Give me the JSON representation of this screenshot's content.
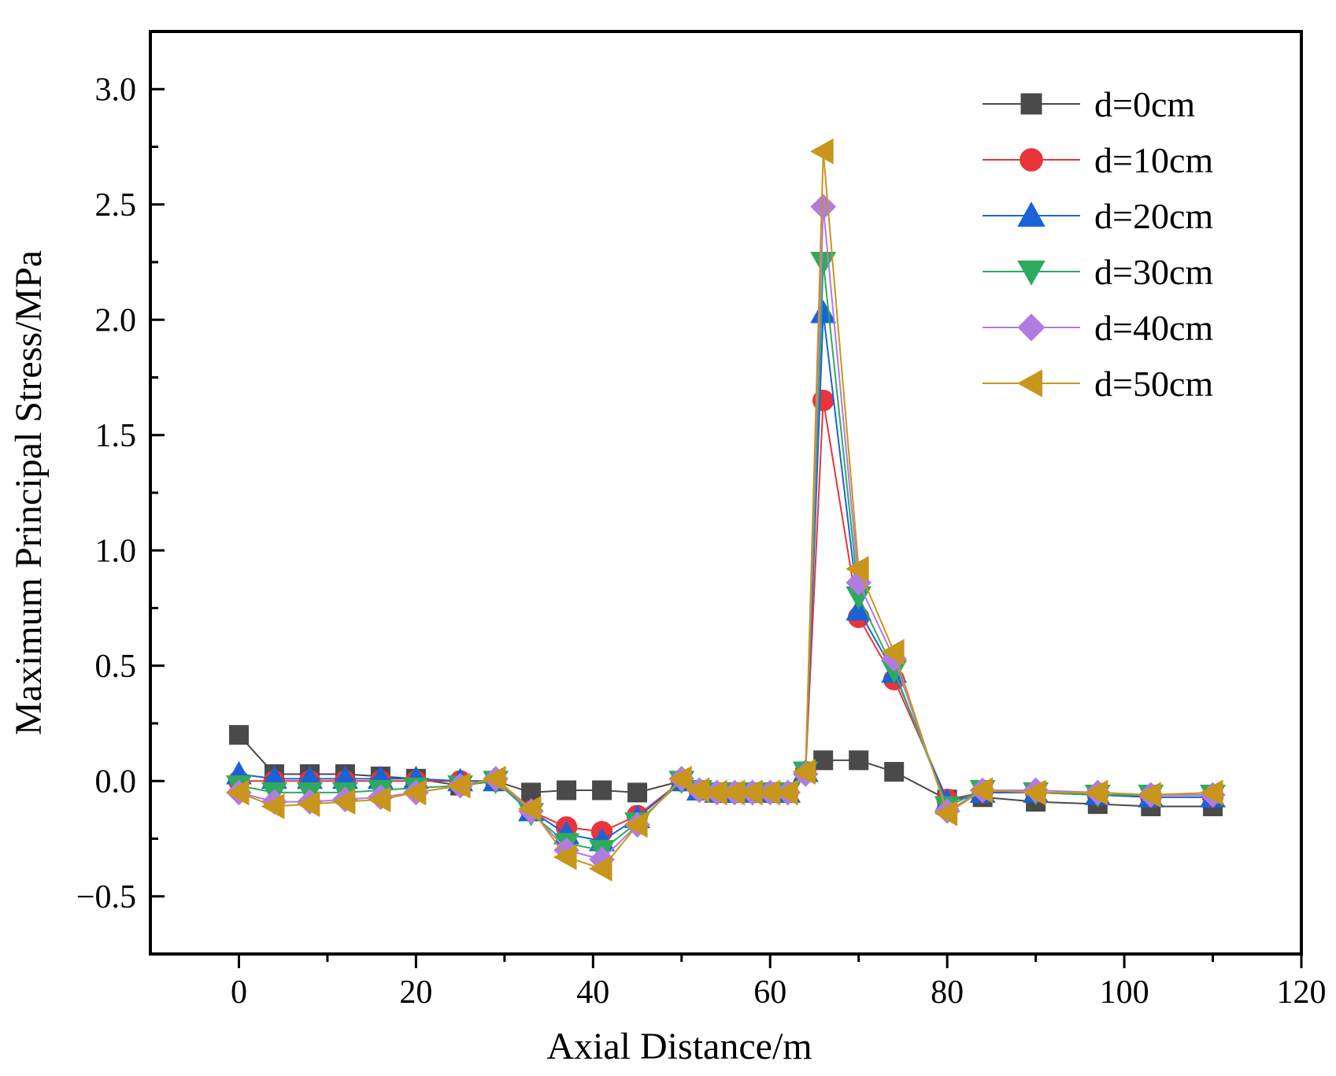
{
  "chart_data": {
    "type": "line",
    "title": "",
    "xlabel": "Axial Distance/m",
    "ylabel": "Maximum Principal Stress/MPa",
    "xlim": [
      -10,
      120
    ],
    "ylim": [
      -0.75,
      3.25
    ],
    "xticks": [
      0,
      20,
      40,
      60,
      80,
      100,
      120
    ],
    "yticks": [
      -0.5,
      0.0,
      0.5,
      1.0,
      1.5,
      2.0,
      2.5,
      3.0
    ],
    "xtick_labels": [
      "0",
      "20",
      "40",
      "60",
      "80",
      "100",
      "120"
    ],
    "ytick_labels": [
      "−0.5",
      "0.0",
      "0.5",
      "1.0",
      "1.5",
      "2.0",
      "2.5",
      "3.0"
    ],
    "grid": false,
    "legend_position": "top-right",
    "x": [
      0,
      4,
      8,
      12,
      16,
      20,
      25,
      29,
      33,
      37,
      41,
      45,
      50,
      52,
      54,
      56,
      58,
      60,
      62,
      64,
      66,
      70,
      74,
      80,
      84,
      90,
      97,
      103,
      110
    ],
    "series": [
      {
        "name": "d=0cm",
        "color": "#4a4a4a",
        "marker": "square",
        "values": [
          0.2,
          0.03,
          0.03,
          0.03,
          0.02,
          0.01,
          -0.02,
          0.0,
          -0.05,
          -0.04,
          -0.04,
          -0.05,
          0.0,
          -0.04,
          -0.05,
          -0.05,
          -0.05,
          -0.05,
          -0.05,
          0.04,
          0.09,
          0.09,
          0.04,
          -0.08,
          -0.07,
          -0.09,
          -0.1,
          -0.11,
          -0.11
        ]
      },
      {
        "name": "d=10cm",
        "color": "#e8343a",
        "marker": "circle",
        "values": [
          0.0,
          0.0,
          0.0,
          0.0,
          0.0,
          0.0,
          0.0,
          0.0,
          -0.13,
          -0.2,
          -0.22,
          -0.15,
          0.0,
          -0.04,
          -0.05,
          -0.05,
          -0.05,
          -0.05,
          -0.05,
          0.04,
          1.65,
          0.71,
          0.44,
          -0.08,
          -0.05,
          -0.05,
          -0.06,
          -0.07,
          -0.07
        ]
      },
      {
        "name": "d=20cm",
        "color": "#1a63d6",
        "marker": "triangle-up",
        "values": [
          0.03,
          0.01,
          0.01,
          0.01,
          0.01,
          0.01,
          0.0,
          0.0,
          -0.13,
          -0.23,
          -0.26,
          -0.16,
          0.0,
          -0.04,
          -0.05,
          -0.05,
          -0.05,
          -0.05,
          -0.05,
          0.04,
          2.03,
          0.74,
          0.47,
          -0.09,
          -0.05,
          -0.05,
          -0.06,
          -0.07,
          -0.07
        ]
      },
      {
        "name": "d=30cm",
        "color": "#2eaa5e",
        "marker": "triangle-down",
        "values": [
          -0.02,
          -0.05,
          -0.05,
          -0.05,
          -0.04,
          -0.03,
          -0.02,
          0.0,
          -0.14,
          -0.27,
          -0.3,
          -0.18,
          0.0,
          -0.04,
          -0.05,
          -0.05,
          -0.05,
          -0.05,
          -0.05,
          0.04,
          2.25,
          0.8,
          0.48,
          -0.11,
          -0.04,
          -0.05,
          -0.06,
          -0.06,
          -0.06
        ]
      },
      {
        "name": "d=40cm",
        "color": "#b27be0",
        "marker": "diamond",
        "values": [
          -0.05,
          -0.09,
          -0.09,
          -0.08,
          -0.07,
          -0.05,
          -0.02,
          0.01,
          -0.13,
          -0.3,
          -0.34,
          -0.19,
          0.01,
          -0.04,
          -0.05,
          -0.05,
          -0.05,
          -0.05,
          -0.05,
          0.03,
          2.49,
          0.86,
          0.53,
          -0.13,
          -0.04,
          -0.04,
          -0.05,
          -0.06,
          -0.06
        ]
      },
      {
        "name": "d=50cm",
        "color": "#c8961a",
        "marker": "triangle-left",
        "values": [
          -0.05,
          -0.11,
          -0.1,
          -0.09,
          -0.08,
          -0.05,
          -0.02,
          0.01,
          -0.12,
          -0.33,
          -0.38,
          -0.19,
          0.01,
          -0.04,
          -0.05,
          -0.05,
          -0.05,
          -0.05,
          -0.05,
          0.04,
          2.73,
          0.92,
          0.56,
          -0.14,
          -0.04,
          -0.05,
          -0.05,
          -0.06,
          -0.05
        ]
      }
    ]
  }
}
